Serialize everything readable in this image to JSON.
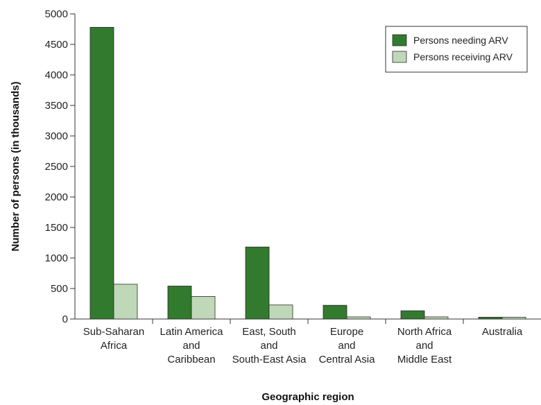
{
  "chart_data": {
    "type": "bar",
    "categories": [
      [
        "Sub-Saharan",
        "Africa"
      ],
      [
        "Latin America",
        "and",
        "Caribbean"
      ],
      [
        "East, South",
        "and",
        "South-East Asia"
      ],
      [
        "Europe",
        "and",
        "Central Asia"
      ],
      [
        "North Africa",
        "and",
        "Middle East"
      ],
      [
        "Australia"
      ]
    ],
    "series": [
      {
        "name": "Persons needing ARV",
        "color": "#327a2d",
        "values": [
          4780,
          540,
          1180,
          225,
          135,
          30
        ]
      },
      {
        "name": "Persons receiving ARV",
        "color": "#bfd8b8",
        "values": [
          570,
          370,
          230,
          35,
          35,
          30
        ]
      }
    ],
    "xlabel": "Geographic region",
    "ylabel": "Number of persons (in thousands)",
    "ylim": [
      0,
      5000
    ],
    "yticks": [
      0,
      500,
      1000,
      1500,
      2000,
      2500,
      3000,
      3500,
      4000,
      4500,
      5000
    ],
    "grid": false,
    "legend_position": "top-right"
  }
}
